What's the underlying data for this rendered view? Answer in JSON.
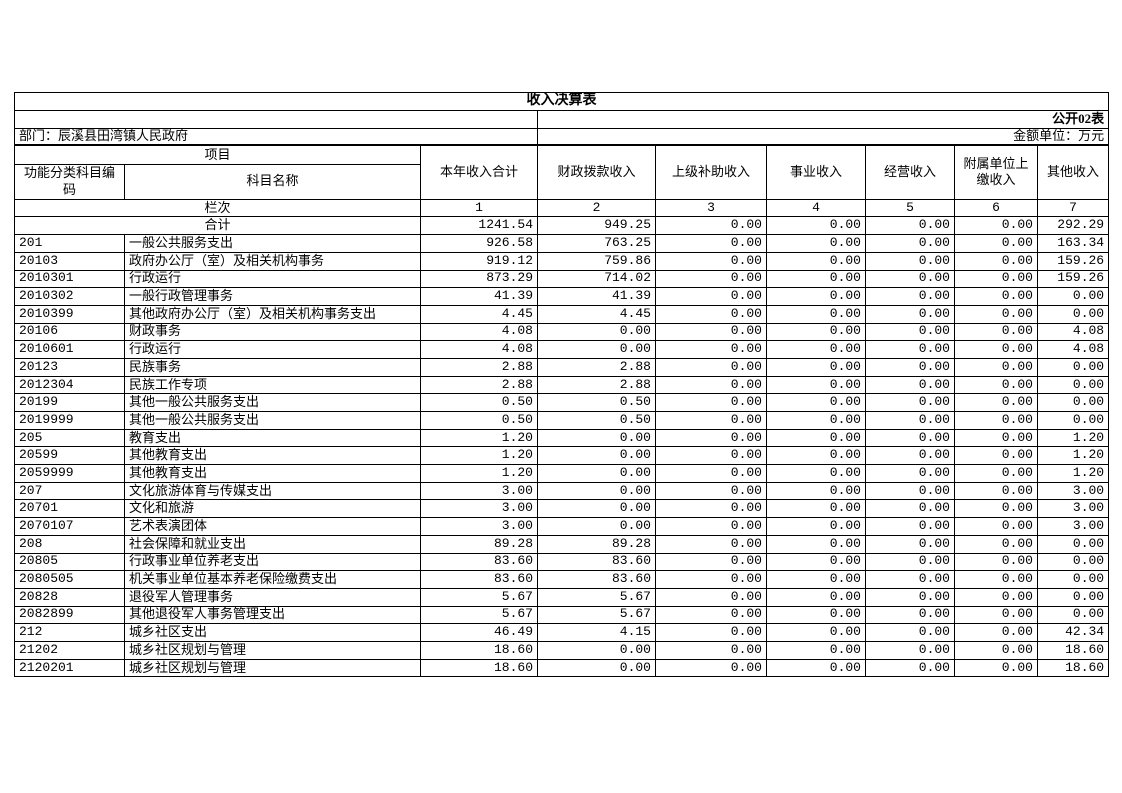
{
  "page": {
    "title": "收入决算表",
    "sheet_label": "公开02表",
    "department": "部门：辰溪县田湾镇人民政府",
    "unit": "金额单位：万元"
  },
  "table": {
    "header": {
      "project": "项目",
      "code_label": "功能分类科目编码",
      "name_label": "科目名称",
      "columns": [
        "本年收入合计",
        "财政拨款收入",
        "上级补助收入",
        "事业收入",
        "经营收入",
        "附属单位上缴收入",
        "其他收入"
      ]
    },
    "lanci_label": "栏次",
    "lanci": [
      "1",
      "2",
      "3",
      "4",
      "5",
      "6",
      "7"
    ],
    "total_label": "合计",
    "total": [
      "1241.54",
      "949.25",
      "0.00",
      "0.00",
      "0.00",
      "0.00",
      "292.29"
    ],
    "rows": [
      {
        "code": "201",
        "name": "一般公共服务支出",
        "values": [
          "926.58",
          "763.25",
          "0.00",
          "0.00",
          "0.00",
          "0.00",
          "163.34"
        ]
      },
      {
        "code": "20103",
        "name": "政府办公厅（室）及相关机构事务",
        "values": [
          "919.12",
          "759.86",
          "0.00",
          "0.00",
          "0.00",
          "0.00",
          "159.26"
        ]
      },
      {
        "code": "2010301",
        "name": "行政运行",
        "values": [
          "873.29",
          "714.02",
          "0.00",
          "0.00",
          "0.00",
          "0.00",
          "159.26"
        ]
      },
      {
        "code": "2010302",
        "name": "一般行政管理事务",
        "values": [
          "41.39",
          "41.39",
          "0.00",
          "0.00",
          "0.00",
          "0.00",
          "0.00"
        ]
      },
      {
        "code": "2010399",
        "name": "其他政府办公厅（室）及相关机构事务支出",
        "values": [
          "4.45",
          "4.45",
          "0.00",
          "0.00",
          "0.00",
          "0.00",
          "0.00"
        ]
      },
      {
        "code": "20106",
        "name": "财政事务",
        "values": [
          "4.08",
          "0.00",
          "0.00",
          "0.00",
          "0.00",
          "0.00",
          "4.08"
        ]
      },
      {
        "code": "2010601",
        "name": "行政运行",
        "values": [
          "4.08",
          "0.00",
          "0.00",
          "0.00",
          "0.00",
          "0.00",
          "4.08"
        ]
      },
      {
        "code": "20123",
        "name": "民族事务",
        "values": [
          "2.88",
          "2.88",
          "0.00",
          "0.00",
          "0.00",
          "0.00",
          "0.00"
        ]
      },
      {
        "code": "2012304",
        "name": "民族工作专项",
        "values": [
          "2.88",
          "2.88",
          "0.00",
          "0.00",
          "0.00",
          "0.00",
          "0.00"
        ]
      },
      {
        "code": "20199",
        "name": "其他一般公共服务支出",
        "values": [
          "0.50",
          "0.50",
          "0.00",
          "0.00",
          "0.00",
          "0.00",
          "0.00"
        ]
      },
      {
        "code": "2019999",
        "name": "其他一般公共服务支出",
        "values": [
          "0.50",
          "0.50",
          "0.00",
          "0.00",
          "0.00",
          "0.00",
          "0.00"
        ]
      },
      {
        "code": "205",
        "name": "教育支出",
        "values": [
          "1.20",
          "0.00",
          "0.00",
          "0.00",
          "0.00",
          "0.00",
          "1.20"
        ]
      },
      {
        "code": "20599",
        "name": "其他教育支出",
        "values": [
          "1.20",
          "0.00",
          "0.00",
          "0.00",
          "0.00",
          "0.00",
          "1.20"
        ]
      },
      {
        "code": "2059999",
        "name": "其他教育支出",
        "values": [
          "1.20",
          "0.00",
          "0.00",
          "0.00",
          "0.00",
          "0.00",
          "1.20"
        ]
      },
      {
        "code": "207",
        "name": "文化旅游体育与传媒支出",
        "values": [
          "3.00",
          "0.00",
          "0.00",
          "0.00",
          "0.00",
          "0.00",
          "3.00"
        ]
      },
      {
        "code": "20701",
        "name": "文化和旅游",
        "values": [
          "3.00",
          "0.00",
          "0.00",
          "0.00",
          "0.00",
          "0.00",
          "3.00"
        ]
      },
      {
        "code": "2070107",
        "name": "艺术表演团体",
        "values": [
          "3.00",
          "0.00",
          "0.00",
          "0.00",
          "0.00",
          "0.00",
          "3.00"
        ]
      },
      {
        "code": "208",
        "name": "社会保障和就业支出",
        "values": [
          "89.28",
          "89.28",
          "0.00",
          "0.00",
          "0.00",
          "0.00",
          "0.00"
        ]
      },
      {
        "code": "20805",
        "name": "行政事业单位养老支出",
        "values": [
          "83.60",
          "83.60",
          "0.00",
          "0.00",
          "0.00",
          "0.00",
          "0.00"
        ]
      },
      {
        "code": "2080505",
        "name": "机关事业单位基本养老保险缴费支出",
        "values": [
          "83.60",
          "83.60",
          "0.00",
          "0.00",
          "0.00",
          "0.00",
          "0.00"
        ]
      },
      {
        "code": "20828",
        "name": "退役军人管理事务",
        "values": [
          "5.67",
          "5.67",
          "0.00",
          "0.00",
          "0.00",
          "0.00",
          "0.00"
        ]
      },
      {
        "code": "2082899",
        "name": "其他退役军人事务管理支出",
        "values": [
          "5.67",
          "5.67",
          "0.00",
          "0.00",
          "0.00",
          "0.00",
          "0.00"
        ]
      },
      {
        "code": "212",
        "name": "城乡社区支出",
        "values": [
          "46.49",
          "4.15",
          "0.00",
          "0.00",
          "0.00",
          "0.00",
          "42.34"
        ]
      },
      {
        "code": "21202",
        "name": "城乡社区规划与管理",
        "values": [
          "18.60",
          "0.00",
          "0.00",
          "0.00",
          "0.00",
          "0.00",
          "18.60"
        ]
      },
      {
        "code": "2120201",
        "name": "城乡社区规划与管理",
        "values": [
          "18.60",
          "0.00",
          "0.00",
          "0.00",
          "0.00",
          "0.00",
          "18.60"
        ]
      }
    ]
  }
}
